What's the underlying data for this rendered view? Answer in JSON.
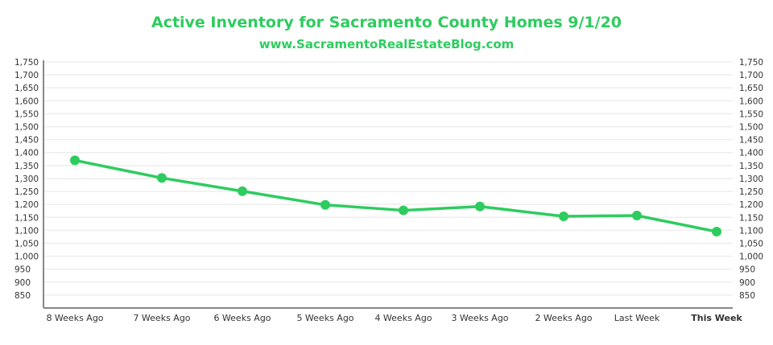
{
  "chart_data": {
    "type": "line",
    "title": "Active Inventory for Sacramento County Homes 9/1/20",
    "subtitle": "www.SacramentoRealEstateBlog.com",
    "categories": [
      "8 Weeks Ago",
      "7 Weeks Ago",
      "6 Weeks Ago",
      "5 Weeks Ago",
      "4 Weeks Ago",
      "3 Weeks Ago",
      "2 Weeks Ago",
      "Last Week",
      "This Week"
    ],
    "series": [
      {
        "name": "Active Inventory",
        "values": [
          1370,
          1302,
          1251,
          1198,
          1177,
          1192,
          1154,
          1157,
          1095
        ]
      }
    ],
    "yticks": [
      850,
      900,
      950,
      1000,
      1050,
      1100,
      1150,
      1200,
      1250,
      1300,
      1350,
      1400,
      1450,
      1500,
      1550,
      1600,
      1650,
      1700,
      1750
    ],
    "ytick_labels": [
      "850",
      "900",
      "950",
      "1,000",
      "1,050",
      "1,100",
      "1,150",
      "1,200",
      "1,250",
      "1,300",
      "1,350",
      "1,400",
      "1,450",
      "1,500",
      "1,550",
      "1,600",
      "1,650",
      "1,700",
      "1,750"
    ],
    "ylim": [
      800,
      1750
    ],
    "grid": true,
    "highlight_category": "This Week",
    "colors": {
      "line": "#2ecc5f",
      "grid": "#eeeeee",
      "axis": "#888888",
      "highlight": "#2ecc5f"
    }
  }
}
